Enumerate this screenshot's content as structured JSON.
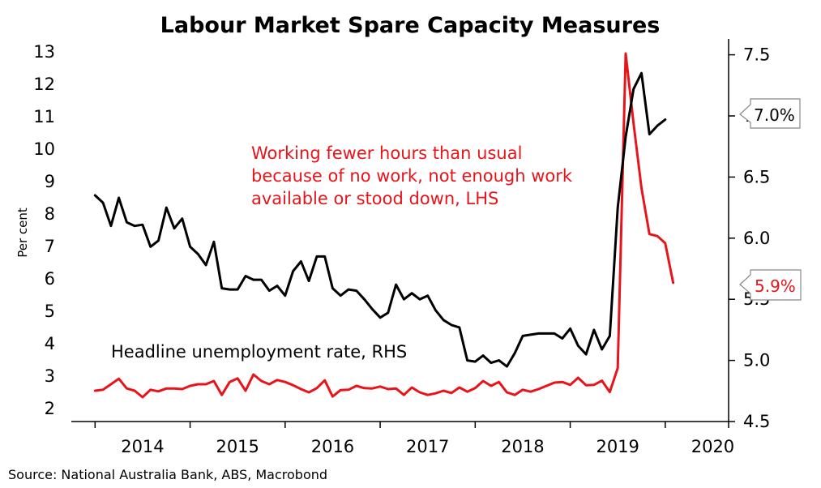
{
  "chart_data": {
    "type": "line",
    "title": "Labour Market Spare Capacity Measures",
    "ylabel": "Per cent",
    "source": "Source: National Australia Bank, ABS, Macrobond",
    "x_start": "2013-10",
    "x_end": "2020-09",
    "x_ticks": [
      "2014",
      "2015",
      "2016",
      "2017",
      "2018",
      "2019",
      "2020"
    ],
    "left_axis": {
      "ylim": [
        1.6,
        13.4
      ],
      "ticks": [
        "2",
        "3",
        "4",
        "5",
        "6",
        "7",
        "8",
        "9",
        "10",
        "11",
        "12",
        "13"
      ]
    },
    "right_axis": {
      "ylim": [
        4.5,
        7.63
      ],
      "ticks": [
        "4.5",
        "5.0",
        "5.5",
        "6.0",
        "6.5",
        "7.0",
        "7.5"
      ]
    },
    "grid": false,
    "annotations": {
      "red_label": [
        "Working fewer hours than usual",
        "because of no work, not enough work",
        "available or stood down, LHS"
      ],
      "black_label": "Headline unemployment rate, RHS"
    },
    "end_labels": {
      "unemployment": "7.0%",
      "fewer_hours": "5.9%"
    },
    "colors": {
      "unemployment": "#000000",
      "fewer_hours": "#e8141a"
    },
    "series": [
      {
        "key": "fewer_hours",
        "axis": "left",
        "start": "2014-01",
        "values": [
          2.55,
          2.58,
          2.75,
          2.92,
          2.62,
          2.55,
          2.35,
          2.58,
          2.53,
          2.62,
          2.62,
          2.6,
          2.7,
          2.75,
          2.75,
          2.85,
          2.42,
          2.82,
          2.93,
          2.55,
          3.05,
          2.85,
          2.75,
          2.88,
          2.82,
          2.72,
          2.6,
          2.5,
          2.63,
          2.87,
          2.37,
          2.57,
          2.58,
          2.7,
          2.63,
          2.62,
          2.68,
          2.6,
          2.62,
          2.42,
          2.65,
          2.5,
          2.42,
          2.47,
          2.55,
          2.48,
          2.65,
          2.52,
          2.63,
          2.85,
          2.7,
          2.82,
          2.5,
          2.42,
          2.58,
          2.52,
          2.6,
          2.7,
          2.8,
          2.82,
          2.73,
          2.95,
          2.72,
          2.73,
          2.86,
          2.51,
          3.25,
          12.95,
          10.8,
          8.8,
          7.38,
          7.32,
          7.1,
          5.88
        ]
      },
      {
        "key": "unemployment",
        "axis": "right",
        "start": "2014-01",
        "values": [
          6.35,
          6.29,
          6.1,
          6.33,
          6.13,
          6.1,
          6.11,
          5.93,
          5.98,
          6.25,
          6.08,
          6.16,
          5.93,
          5.87,
          5.78,
          5.97,
          5.59,
          5.58,
          5.58,
          5.69,
          5.66,
          5.66,
          5.57,
          5.61,
          5.53,
          5.73,
          5.81,
          5.65,
          5.85,
          5.85,
          5.59,
          5.53,
          5.58,
          5.57,
          5.5,
          5.42,
          5.35,
          5.39,
          5.62,
          5.5,
          5.55,
          5.5,
          5.53,
          5.41,
          5.33,
          5.29,
          5.27,
          5.0,
          4.99,
          5.04,
          4.98,
          5.0,
          4.95,
          5.06,
          5.2,
          5.21,
          5.22,
          5.22,
          5.22,
          5.18,
          5.26,
          5.12,
          5.05,
          5.25,
          5.09,
          5.2,
          6.25,
          6.83,
          7.22,
          7.35,
          6.85,
          6.92,
          6.97
        ]
      }
    ]
  }
}
